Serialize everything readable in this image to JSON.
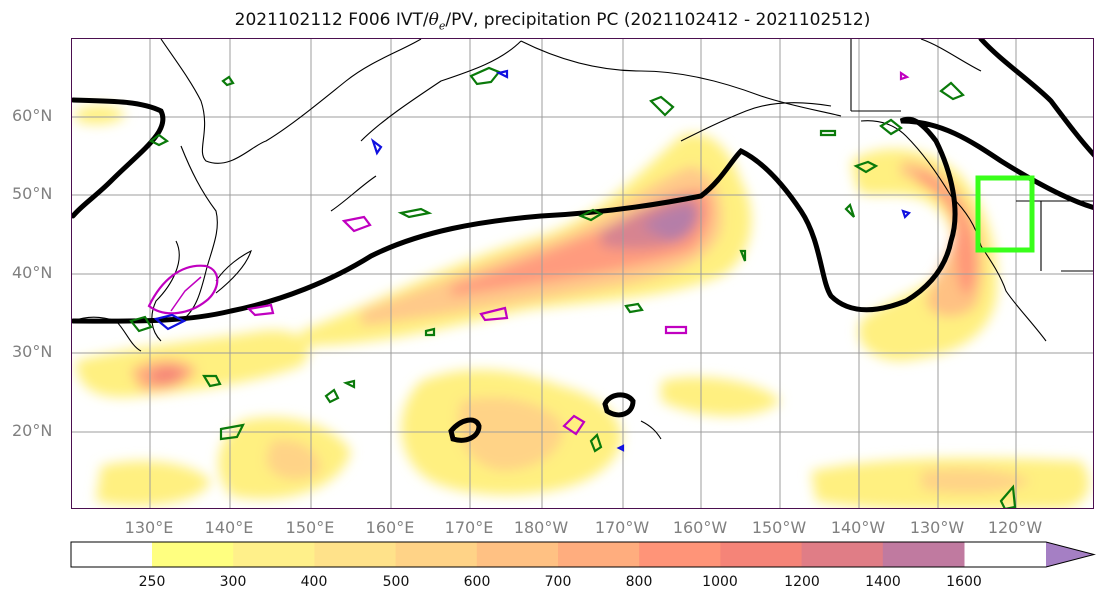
{
  "map": {
    "title_main": "2021102112 F006 IVT/",
    "title_theta": "θ",
    "title_sub": "e",
    "title_rest": "/PV, precipitation PC (2021102412 - 2021102512)",
    "lat_labels": [
      "60°N",
      "50°N",
      "40°N",
      "30°N",
      "20°N"
    ],
    "lon_labels": [
      "130°E",
      "140°E",
      "150°E",
      "160°E",
      "170°E",
      "180°W",
      "170°W",
      "160°W",
      "150°W",
      "140°W",
      "130°W",
      "120°W"
    ]
  },
  "colorbar": {
    "labels": [
      "250",
      "300",
      "400",
      "500",
      "600",
      "700",
      "800",
      "1000",
      "1200",
      "1400",
      "1600"
    ],
    "colors": [
      "#ffff80",
      "#fff08a",
      "#ffe28a",
      "#ffd387",
      "#ffc183",
      "#ffad7e",
      "#ff9478",
      "#f58478",
      "#e07d86",
      "#c07aa0",
      "#a57fc4"
    ]
  }
}
